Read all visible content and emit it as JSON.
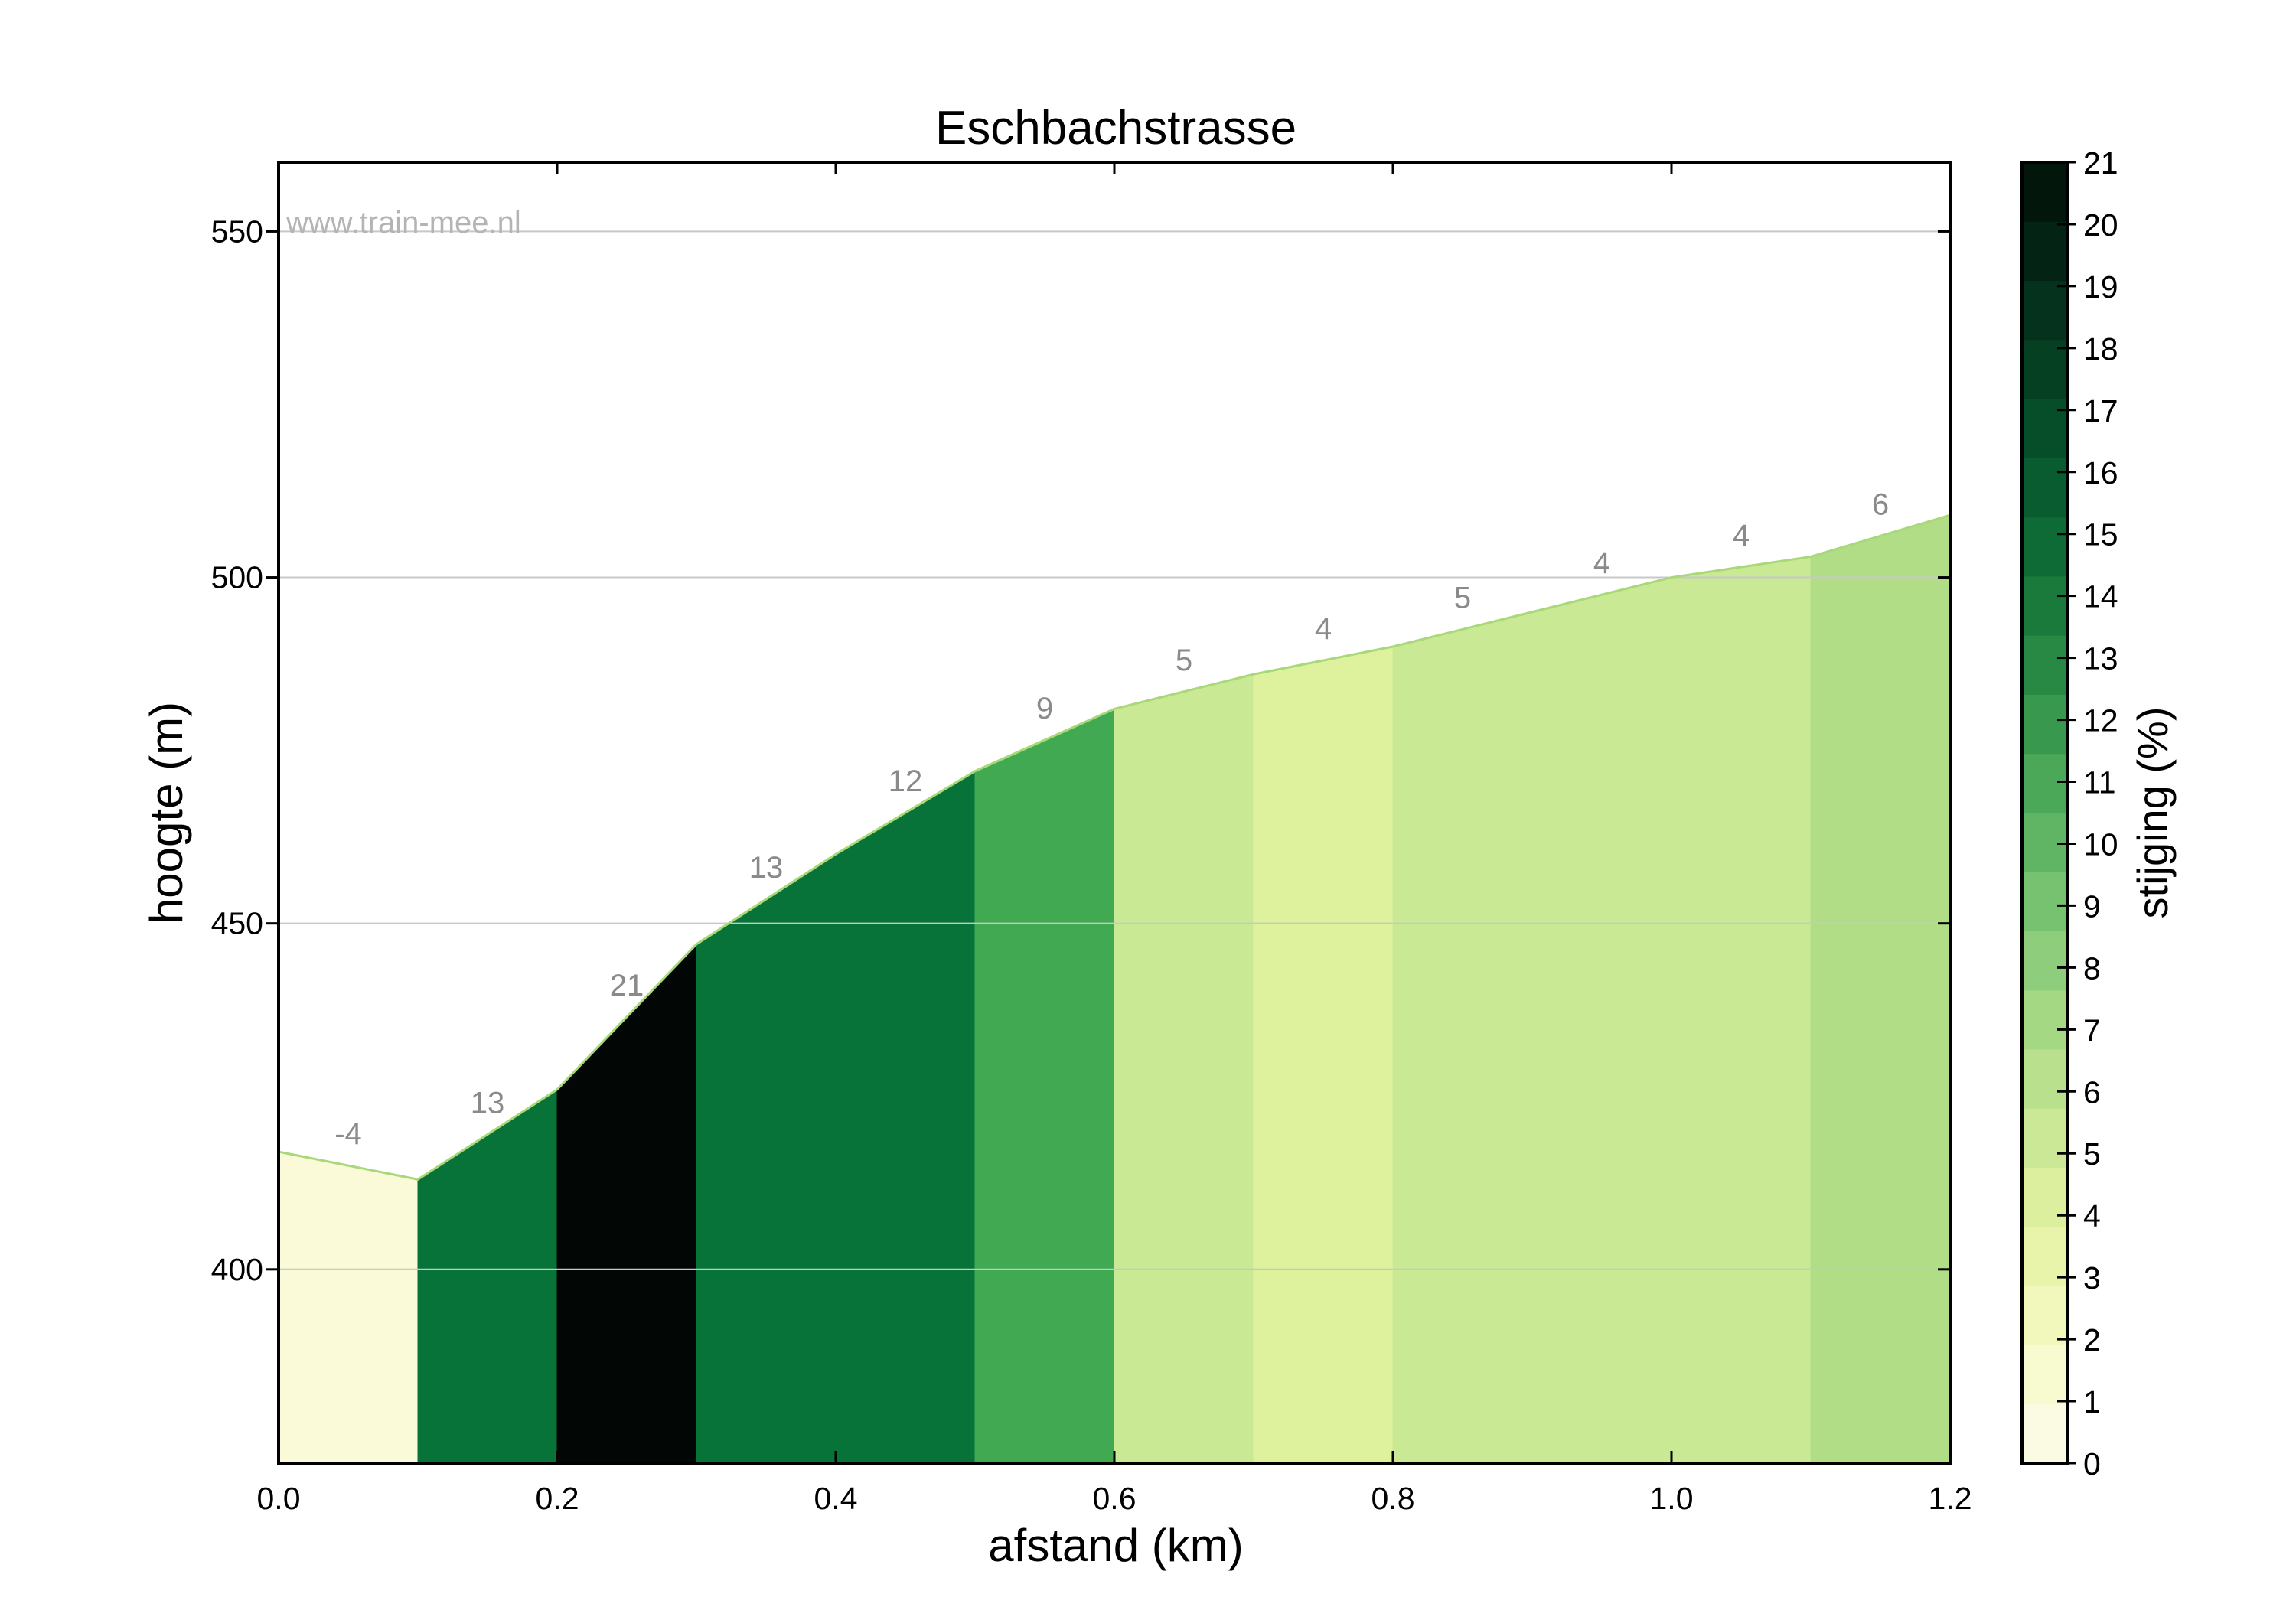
{
  "chart_data": {
    "type": "area",
    "title": "Eschbachstrasse",
    "xlabel": "afstand (km)",
    "ylabel": "hoogte (m)",
    "xlim": [
      0.0,
      1.2
    ],
    "ylim": [
      372,
      560
    ],
    "xticks": [
      "0.0",
      "0.2",
      "0.4",
      "0.6",
      "0.8",
      "1.0",
      "1.2"
    ],
    "yticks": [
      "400",
      "450",
      "500",
      "550"
    ],
    "grid": "horizontal",
    "watermark": "www.train-mee.nl",
    "profile": {
      "x": [
        0.0,
        0.1,
        0.2,
        0.3,
        0.4,
        0.5,
        0.6,
        0.7,
        0.8,
        0.9,
        1.0,
        1.1,
        1.2
      ],
      "y": [
        417,
        413,
        426,
        447,
        460,
        472,
        481,
        486,
        490,
        495,
        500,
        503,
        509
      ]
    },
    "segments": [
      {
        "start": 0.0,
        "end": 0.1,
        "gradient": -4,
        "label": "-4",
        "color": "#fafad8"
      },
      {
        "start": 0.1,
        "end": 0.2,
        "gradient": 13,
        "label": "13",
        "color": "#077338"
      },
      {
        "start": 0.2,
        "end": 0.3,
        "gradient": 21,
        "label": "21",
        "color": "#020706"
      },
      {
        "start": 0.3,
        "end": 0.4,
        "gradient": 13,
        "label": "13",
        "color": "#077338"
      },
      {
        "start": 0.4,
        "end": 0.5,
        "gradient": 12,
        "label": "12",
        "color": "#077338"
      },
      {
        "start": 0.5,
        "end": 0.6,
        "gradient": 9,
        "label": "9",
        "color": "#40a952"
      },
      {
        "start": 0.6,
        "end": 0.7,
        "gradient": 5,
        "label": "5",
        "color": "#c9e995"
      },
      {
        "start": 0.7,
        "end": 0.8,
        "gradient": 4,
        "label": "4",
        "color": "#def29d"
      },
      {
        "start": 0.8,
        "end": 0.9,
        "gradient": 5,
        "label": "5",
        "color": "#c9e995"
      },
      {
        "start": 0.9,
        "end": 1.0,
        "gradient": 4,
        "label": "4",
        "color": "#c9e995"
      },
      {
        "start": 1.0,
        "end": 1.1,
        "gradient": 4,
        "label": "4",
        "color": "#c9e995"
      },
      {
        "start": 1.1,
        "end": 1.2,
        "gradient": 6,
        "label": "6",
        "color": "#b0dd86"
      }
    ],
    "colorbar": {
      "label": "stijging (%)",
      "min": 0,
      "max": 21,
      "ticks": [
        "0",
        "1",
        "2",
        "3",
        "4",
        "5",
        "6",
        "7",
        "8",
        "9",
        "10",
        "11",
        "12",
        "13",
        "14",
        "15",
        "16",
        "17",
        "18",
        "19",
        "20",
        "21"
      ],
      "colors": [
        "#fbfbe3",
        "#f8fad0",
        "#f2f8bb",
        "#e8f4a9",
        "#dcef9f",
        "#cbe897",
        "#b8e08d",
        "#a4d883",
        "#8ecd7b",
        "#76c270",
        "#5fb564",
        "#4aa858",
        "#38994e",
        "#288944",
        "#1a7a3c",
        "#0e6b36",
        "#095c30",
        "#064e2a",
        "#054023",
        "#04321c",
        "#032414",
        "#02160c"
      ]
    }
  }
}
